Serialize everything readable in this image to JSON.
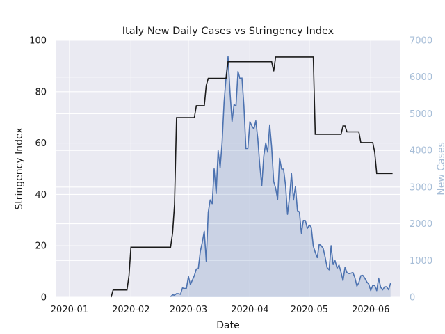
{
  "chart_data": {
    "type": "line",
    "title": "Italy New Daily Cases vs Stringency Index",
    "xlabel": "Date",
    "ylabel": "Stringency Index",
    "y2label": "New Cases",
    "x_ticks": [
      "2020-01",
      "2020-02",
      "2020-03",
      "2020-04",
      "2020-05",
      "2020-06"
    ],
    "y_ticks": [
      "0",
      "20",
      "40",
      "60",
      "80",
      "100"
    ],
    "y2_ticks": [
      "0",
      "1000",
      "2000",
      "3000",
      "4000",
      "5000",
      "6000",
      "7000"
    ],
    "ylim": [
      0,
      100
    ],
    "y2lim": [
      0,
      7000
    ],
    "xlim": [
      "2019-12-25",
      "2020-06-16"
    ],
    "grid": true,
    "colors": {
      "background": "#eaeaf2",
      "grid": "#ffffff",
      "stringency": "#1a1a1a",
      "cases": "#4c72b0",
      "cases_fill": "#4c72b0",
      "right_axis": "#a6bdd7"
    },
    "series": [
      {
        "axis": "left",
        "style": "step",
        "points": [
          [
            "2020-01-22",
            0
          ],
          [
            "2020-01-23",
            2.78
          ],
          [
            "2020-01-30",
            2.78
          ],
          [
            "2020-01-31",
            8.33
          ],
          [
            "2020-02-01",
            19.44
          ],
          [
            "2020-02-21",
            19.44
          ],
          [
            "2020-02-22",
            25.0
          ],
          [
            "2020-02-23",
            36.11
          ],
          [
            "2020-02-24",
            69.91
          ],
          [
            "2020-03-04",
            69.91
          ],
          [
            "2020-03-05",
            74.54
          ],
          [
            "2020-03-09",
            74.54
          ],
          [
            "2020-03-10",
            82.41
          ],
          [
            "2020-03-11",
            85.19
          ],
          [
            "2020-03-20",
            85.19
          ],
          [
            "2020-03-21",
            91.67
          ],
          [
            "2020-04-12",
            91.67
          ],
          [
            "2020-04-13",
            87.96
          ],
          [
            "2020-04-14",
            93.52
          ],
          [
            "2020-05-03",
            93.52
          ],
          [
            "2020-05-04",
            63.43
          ],
          [
            "2020-05-17",
            63.43
          ],
          [
            "2020-05-18",
            66.67
          ],
          [
            "2020-05-19",
            66.67
          ],
          [
            "2020-05-20",
            64.35
          ],
          [
            "2020-05-26",
            64.35
          ],
          [
            "2020-05-27",
            60.19
          ],
          [
            "2020-06-02",
            60.19
          ],
          [
            "2020-06-03",
            56.48
          ],
          [
            "2020-06-04",
            48.15
          ],
          [
            "2020-06-12",
            48.15
          ]
        ]
      },
      {
        "axis": "right",
        "style": "area",
        "points": [
          [
            "2020-02-21",
            14
          ],
          [
            "2020-02-22",
            62
          ],
          [
            "2020-02-23",
            53
          ],
          [
            "2020-02-24",
            97
          ],
          [
            "2020-02-25",
            93
          ],
          [
            "2020-02-26",
            78
          ],
          [
            "2020-02-27",
            250
          ],
          [
            "2020-02-28",
            238
          ],
          [
            "2020-02-29",
            240
          ],
          [
            "2020-03-01",
            566
          ],
          [
            "2020-03-02",
            342
          ],
          [
            "2020-03-03",
            466
          ],
          [
            "2020-03-04",
            587
          ],
          [
            "2020-03-05",
            769
          ],
          [
            "2020-03-06",
            778
          ],
          [
            "2020-03-07",
            1247
          ],
          [
            "2020-03-08",
            1492
          ],
          [
            "2020-03-09",
            1797
          ],
          [
            "2020-03-10",
            977
          ],
          [
            "2020-03-11",
            2313
          ],
          [
            "2020-03-12",
            2651
          ],
          [
            "2020-03-13",
            2547
          ],
          [
            "2020-03-14",
            3497
          ],
          [
            "2020-03-15",
            2823
          ],
          [
            "2020-03-16",
            4000
          ],
          [
            "2020-03-17",
            3526
          ],
          [
            "2020-03-18",
            4207
          ],
          [
            "2020-03-19",
            5322
          ],
          [
            "2020-03-20",
            5986
          ],
          [
            "2020-03-21",
            6557
          ],
          [
            "2020-03-22",
            5560
          ],
          [
            "2020-03-23",
            4789
          ],
          [
            "2020-03-24",
            5249
          ],
          [
            "2020-03-25",
            5210
          ],
          [
            "2020-03-26",
            6153
          ],
          [
            "2020-03-27",
            5959
          ],
          [
            "2020-03-28",
            5974
          ],
          [
            "2020-03-29",
            5217
          ],
          [
            "2020-03-30",
            4050
          ],
          [
            "2020-03-31",
            4053
          ],
          [
            "2020-04-01",
            4782
          ],
          [
            "2020-04-02",
            4668
          ],
          [
            "2020-04-03",
            4585
          ],
          [
            "2020-04-04",
            4805
          ],
          [
            "2020-04-05",
            4316
          ],
          [
            "2020-04-06",
            3599
          ],
          [
            "2020-04-07",
            3039
          ],
          [
            "2020-04-08",
            3836
          ],
          [
            "2020-04-09",
            4204
          ],
          [
            "2020-04-10",
            3951
          ],
          [
            "2020-04-11",
            4694
          ],
          [
            "2020-04-12",
            4092
          ],
          [
            "2020-04-13",
            3153
          ],
          [
            "2020-04-14",
            2972
          ],
          [
            "2020-04-15",
            2667
          ],
          [
            "2020-04-16",
            3786
          ],
          [
            "2020-04-17",
            3493
          ],
          [
            "2020-04-18",
            3491
          ],
          [
            "2020-04-19",
            3047
          ],
          [
            "2020-04-20",
            2256
          ],
          [
            "2020-04-21",
            2729
          ],
          [
            "2020-04-22",
            3370
          ],
          [
            "2020-04-23",
            2646
          ],
          [
            "2020-04-24",
            3021
          ],
          [
            "2020-04-25",
            2357
          ],
          [
            "2020-04-26",
            2324
          ],
          [
            "2020-04-27",
            1739
          ],
          [
            "2020-04-28",
            2091
          ],
          [
            "2020-04-29",
            2086
          ],
          [
            "2020-04-30",
            1872
          ],
          [
            "2020-05-01",
            1965
          ],
          [
            "2020-05-02",
            1900
          ],
          [
            "2020-05-03",
            1389
          ],
          [
            "2020-05-04",
            1221
          ],
          [
            "2020-05-05",
            1075
          ],
          [
            "2020-05-06",
            1444
          ],
          [
            "2020-05-07",
            1401
          ],
          [
            "2020-05-08",
            1327
          ],
          [
            "2020-05-09",
            1083
          ],
          [
            "2020-05-10",
            802
          ],
          [
            "2020-05-11",
            744
          ],
          [
            "2020-05-12",
            1402
          ],
          [
            "2020-05-13",
            888
          ],
          [
            "2020-05-14",
            992
          ],
          [
            "2020-05-15",
            789
          ],
          [
            "2020-05-16",
            875
          ],
          [
            "2020-05-17",
            675
          ],
          [
            "2020-05-18",
            451
          ],
          [
            "2020-05-19",
            813
          ],
          [
            "2020-05-20",
            665
          ],
          [
            "2020-05-21",
            642
          ],
          [
            "2020-05-22",
            652
          ],
          [
            "2020-05-23",
            669
          ],
          [
            "2020-05-24",
            531
          ],
          [
            "2020-05-25",
            300
          ],
          [
            "2020-05-26",
            397
          ],
          [
            "2020-05-27",
            584
          ],
          [
            "2020-05-28",
            593
          ],
          [
            "2020-05-29",
            516
          ],
          [
            "2020-05-30",
            416
          ],
          [
            "2020-05-31",
            355
          ],
          [
            "2020-06-01",
            178
          ],
          [
            "2020-06-02",
            318
          ],
          [
            "2020-06-03",
            321
          ],
          [
            "2020-06-04",
            177
          ],
          [
            "2020-06-05",
            518
          ],
          [
            "2020-06-06",
            270
          ],
          [
            "2020-06-07",
            197
          ],
          [
            "2020-06-08",
            280
          ],
          [
            "2020-06-09",
            283
          ],
          [
            "2020-06-10",
            202
          ],
          [
            "2020-06-11",
            379
          ]
        ]
      }
    ]
  }
}
